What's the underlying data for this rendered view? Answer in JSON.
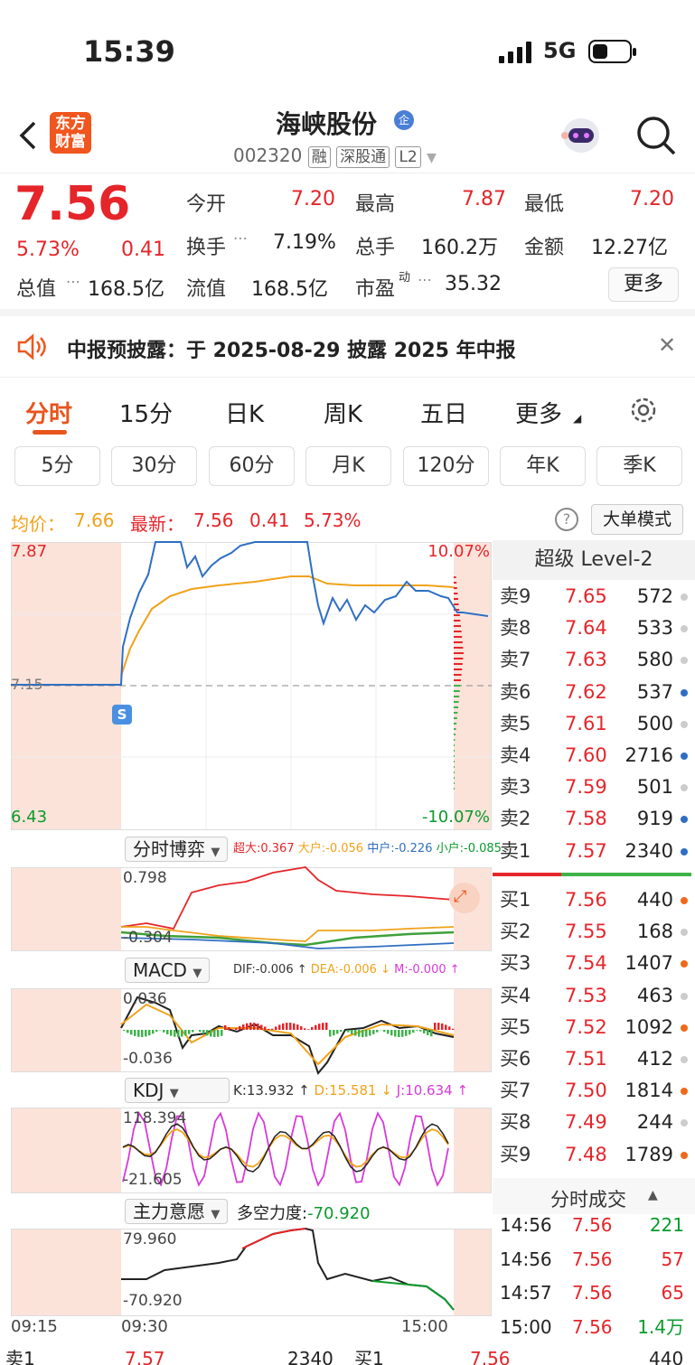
{
  "status": {
    "time": "15:39",
    "network": "5G"
  },
  "nav": {
    "logo_line1": "东方",
    "logo_line2": "财富",
    "title": "海峡股份",
    "title_badge": "企",
    "code": "002320",
    "tags": [
      "融",
      "深股通",
      "L2"
    ]
  },
  "quote": {
    "price": "7.56",
    "change_pct": "5.73%",
    "change": "0.41",
    "open_label": "今开",
    "open": "7.20",
    "high_label": "最高",
    "high": "7.87",
    "low_label": "最低",
    "low": "7.20",
    "turnover_label": "换手",
    "turnover": "7.19%",
    "volume_label": "总手",
    "volume": "160.2万",
    "amount_label": "金额",
    "amount": "12.27亿",
    "mktcap_label": "总值",
    "mktcap": "168.5亿",
    "float_label": "流值",
    "float": "168.5亿",
    "pe_label": "市盈",
    "pe_sup": "动",
    "pe": "35.32",
    "more_button": "更多"
  },
  "notice": {
    "text": "中报预披露：于 2025-08-29 披露 2025 年中报"
  },
  "tabs": [
    "分时",
    "15分",
    "日K",
    "周K",
    "五日",
    "更多"
  ],
  "subtabs": [
    "5分",
    "30分",
    "60分",
    "月K",
    "120分",
    "年K",
    "季K"
  ],
  "info": {
    "avg_label": "均价：",
    "avg": "7.66",
    "last_label": "最新：",
    "last": "7.56",
    "chg": "0.41",
    "chg_pct": "5.73%",
    "mode_button": "大单模式"
  },
  "chart": {
    "price_max": "7.87",
    "price_min": "6.43",
    "pct_max": "10.07%",
    "pct_min": "-10.07%",
    "prev_close": "7.15",
    "s_marker": "S",
    "game_select": "分时博弈",
    "game_legend": {
      "super": "超大:0.367",
      "large": "大户:-0.056",
      "mid": "中户:-0.226",
      "small": "小户:-0.085"
    },
    "game_max": "0.798",
    "game_min": "-0.304",
    "macd_select": "MACD",
    "macd_legend": {
      "dif": "DIF:-0.006 ↑",
      "dea": "DEA:-0.006 ↓",
      "m": "M:-0.000 ↑"
    },
    "macd_max": "0.036",
    "macd_min": "-0.036",
    "kdj_select": "KDJ",
    "kdj_legend": {
      "k": "K:13.932 ↑",
      "d": "D:15.581 ↓",
      "j": "J:10.634 ↑"
    },
    "kdj_max": "118.394",
    "kdj_min": "-21.605",
    "force_select": "主力意愿",
    "force_label": "多空力度:",
    "force_value": "-70.920",
    "force_max": "79.960",
    "force_min": "-70.920",
    "time_start": "09:15",
    "time_open": "09:30",
    "time_end": "15:00"
  },
  "book": {
    "title": "超级 Level-2",
    "asks": [
      {
        "label": "卖9",
        "price": "7.65",
        "vol": "572",
        "dot": "#cccccc"
      },
      {
        "label": "卖8",
        "price": "7.64",
        "vol": "533",
        "dot": "#cccccc"
      },
      {
        "label": "卖7",
        "price": "7.63",
        "vol": "580",
        "dot": "#cccccc"
      },
      {
        "label": "卖6",
        "price": "7.62",
        "vol": "537",
        "dot": "#2f6fc2"
      },
      {
        "label": "卖5",
        "price": "7.61",
        "vol": "500",
        "dot": "#cccccc"
      },
      {
        "label": "卖4",
        "price": "7.60",
        "vol": "2716",
        "dot": "#2f6fc2"
      },
      {
        "label": "卖3",
        "price": "7.59",
        "vol": "501",
        "dot": "#cccccc"
      },
      {
        "label": "卖2",
        "price": "7.58",
        "vol": "919",
        "dot": "#2f6fc2"
      },
      {
        "label": "卖1",
        "price": "7.57",
        "vol": "2340",
        "dot": "#2f6fc2"
      }
    ],
    "bids": [
      {
        "label": "买1",
        "price": "7.56",
        "vol": "440",
        "dot": "#ee6a1b"
      },
      {
        "label": "买2",
        "price": "7.55",
        "vol": "168",
        "dot": "#cccccc"
      },
      {
        "label": "买3",
        "price": "7.54",
        "vol": "1407",
        "dot": "#ee6a1b"
      },
      {
        "label": "买4",
        "price": "7.53",
        "vol": "463",
        "dot": "#cccccc"
      },
      {
        "label": "买5",
        "price": "7.52",
        "vol": "1092",
        "dot": "#ee6a1b"
      },
      {
        "label": "买6",
        "price": "7.51",
        "vol": "412",
        "dot": "#cccccc"
      },
      {
        "label": "买7",
        "price": "7.50",
        "vol": "1814",
        "dot": "#ee6a1b"
      },
      {
        "label": "买8",
        "price": "7.49",
        "vol": "244",
        "dot": "#cccccc"
      },
      {
        "label": "买9",
        "price": "7.48",
        "vol": "1789",
        "dot": "#ee6a1b"
      }
    ],
    "trades_title": "分时成交",
    "trades": [
      {
        "time": "14:56",
        "price": "7.56",
        "vol": "221",
        "color": "#0a9a2c"
      },
      {
        "time": "14:56",
        "price": "7.56",
        "vol": "57",
        "color": "#e5252a"
      },
      {
        "time": "14:57",
        "price": "7.56",
        "vol": "65",
        "color": "#e5252a"
      },
      {
        "time": "15:00",
        "price": "7.56",
        "vol": "1.4万",
        "color": "#0a9a2c"
      }
    ]
  },
  "bottom": {
    "sell_label": "卖1",
    "sell_price": "7.57",
    "sell_vol": "2340",
    "buy_label": "买1",
    "buy_price": "7.56",
    "buy_vol": "440"
  }
}
